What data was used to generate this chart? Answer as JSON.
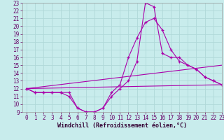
{
  "xlabel": "Windchill (Refroidissement éolien,°C)",
  "background_color": "#c8ecec",
  "grid_color": "#b0d8d8",
  "line_color": "#aa00aa",
  "curve1_x": [
    0,
    1,
    2,
    3,
    4,
    5,
    6,
    7,
    8,
    9,
    10,
    11,
    12,
    13,
    14,
    15,
    16,
    17,
    18,
    19,
    20,
    21,
    22,
    23
  ],
  "curve1_y": [
    12,
    11.5,
    11.5,
    11.5,
    11.5,
    11.5,
    9.5,
    9.0,
    9.0,
    9.5,
    11.0,
    12.0,
    13.0,
    15.5,
    23.0,
    22.5,
    16.5,
    16.0,
    16.0,
    15.0,
    14.5,
    13.5,
    13.0,
    12.5
  ],
  "curve2_x": [
    0,
    1,
    2,
    3,
    4,
    5,
    6,
    7,
    8,
    9,
    10,
    11,
    12,
    13,
    14,
    15,
    16,
    17,
    18,
    19,
    20,
    21,
    22,
    23
  ],
  "curve2_y": [
    12,
    11.5,
    11.5,
    11.5,
    11.5,
    11.0,
    9.5,
    9.0,
    9.0,
    9.5,
    11.5,
    12.5,
    16.0,
    18.5,
    20.5,
    21.0,
    19.5,
    17.0,
    15.5,
    15.0,
    14.5,
    13.5,
    13.0,
    12.5
  ],
  "line3_x": [
    0,
    23
  ],
  "line3_y": [
    12.0,
    12.5
  ],
  "line4_x": [
    0,
    23
  ],
  "line4_y": [
    12.0,
    15.0
  ],
  "ylim": [
    9,
    23
  ],
  "xlim": [
    -0.5,
    23
  ],
  "yticks": [
    9,
    10,
    11,
    12,
    13,
    14,
    15,
    16,
    17,
    18,
    19,
    20,
    21,
    22,
    23
  ],
  "xticks": [
    0,
    1,
    2,
    3,
    4,
    5,
    6,
    7,
    8,
    9,
    10,
    11,
    12,
    13,
    14,
    15,
    16,
    17,
    18,
    19,
    20,
    21,
    22,
    23
  ],
  "tick_fontsize": 5.5,
  "label_fontsize": 6.0
}
